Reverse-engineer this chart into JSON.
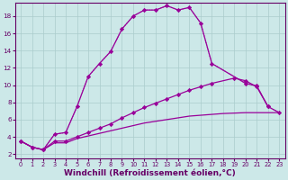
{
  "bg_color": "#cce8e8",
  "grid_color": "#aacccc",
  "line_color": "#990099",
  "xlabel": "Windchill (Refroidissement éolien,°C)",
  "xlabel_fontsize": 6.5,
  "yticks": [
    2,
    4,
    6,
    8,
    10,
    12,
    14,
    16,
    18
  ],
  "xticks": [
    0,
    1,
    2,
    3,
    4,
    5,
    6,
    7,
    8,
    9,
    10,
    11,
    12,
    13,
    14,
    15,
    16,
    17,
    18,
    19,
    20,
    21,
    22,
    23
  ],
  "xlim": [
    -0.5,
    23.5
  ],
  "ylim": [
    1.5,
    19.5
  ],
  "line1_x": [
    0,
    1,
    2,
    3,
    4,
    5,
    6,
    7,
    8,
    9,
    10,
    11,
    12,
    13,
    14,
    15,
    16,
    17,
    20,
    21,
    22
  ],
  "line1_y": [
    3.5,
    2.8,
    2.5,
    4.3,
    4.5,
    7.5,
    11.0,
    12.5,
    13.9,
    16.5,
    18.0,
    18.7,
    18.7,
    19.2,
    18.7,
    19.0,
    17.2,
    12.5,
    10.2,
    9.9,
    7.5
  ],
  "line2_x": [
    0,
    1,
    2,
    3,
    4,
    5,
    6,
    7,
    8,
    9,
    10,
    11,
    12,
    13,
    14,
    15,
    16,
    17,
    20,
    21,
    22,
    23
  ],
  "line2_y": [
    3.5,
    2.8,
    2.5,
    4.3,
    4.5,
    7.5,
    11.0,
    12.5,
    13.9,
    16.5,
    18.0,
    18.7,
    18.7,
    19.2,
    18.7,
    19.0,
    17.2,
    12.5,
    10.2,
    9.9,
    7.5,
    6.8
  ],
  "line3_x": [
    0,
    1,
    2,
    3,
    4,
    5,
    6,
    7,
    8,
    9,
    10,
    11,
    12,
    13,
    14,
    15,
    16,
    17,
    19,
    20,
    21,
    22,
    23
  ],
  "line3_y": [
    3.5,
    2.8,
    2.5,
    3.5,
    3.5,
    4.0,
    4.5,
    5.0,
    5.5,
    6.2,
    6.8,
    7.4,
    7.9,
    8.4,
    8.9,
    9.4,
    9.8,
    10.2,
    10.8,
    10.5,
    9.8,
    7.5,
    6.8
  ],
  "line4_x": [
    0,
    1,
    2,
    3,
    4,
    5,
    6,
    7,
    8,
    9,
    10,
    11,
    12,
    13,
    14,
    15,
    16,
    17,
    18,
    19,
    20,
    21,
    22,
    23
  ],
  "line4_y": [
    3.5,
    2.8,
    2.5,
    3.3,
    3.3,
    3.8,
    4.1,
    4.4,
    4.7,
    5.0,
    5.3,
    5.6,
    5.8,
    6.0,
    6.2,
    6.4,
    6.5,
    6.6,
    6.7,
    6.75,
    6.8,
    6.8,
    6.8,
    6.8
  ]
}
